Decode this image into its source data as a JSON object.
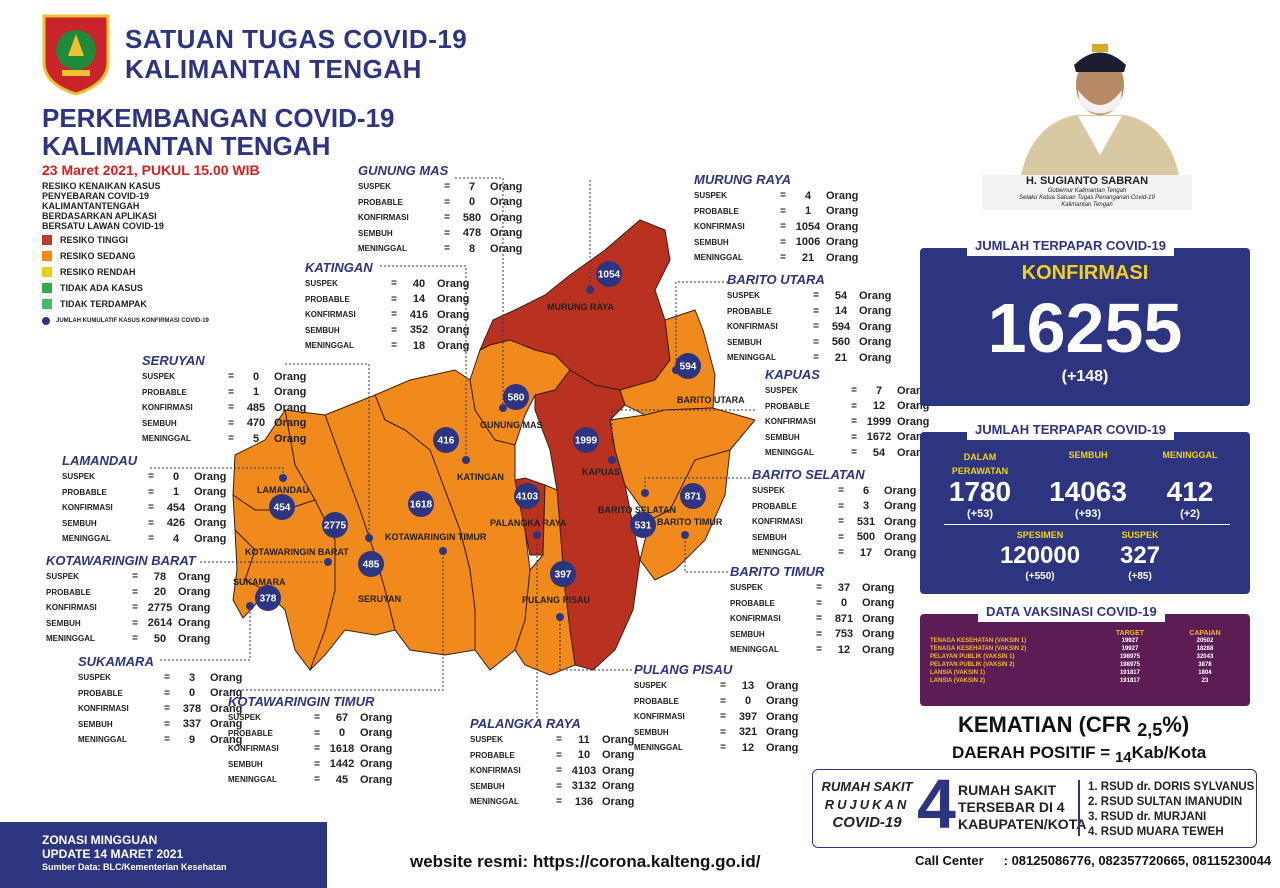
{
  "header": {
    "org_line1": "SATUAN TUGAS COVID-19",
    "org_line2": "KALIMANTAN TENGAH",
    "title_line1": "PERKEMBANGAN COVID-19",
    "title_line2": "KALIMANTAN TENGAH",
    "date": "23 Maret 2021, PUKUL 15.00 WIB"
  },
  "legend": {
    "heading_lines": [
      "RESIKO KENAIKAN KASUS",
      "PENYEBARAN COVID-19",
      "KALIMANTANTENGAH",
      "BERDASARKAN APLIKASI",
      "BERSATU LAWAN COVID-19"
    ],
    "items": [
      {
        "label": "RESIKO TINGGI",
        "color": "#c0392b"
      },
      {
        "label": "RESIKO SEDANG",
        "color": "#f28a1a"
      },
      {
        "label": "RESIKO RENDAH",
        "color": "#e8d21d"
      },
      {
        "label": "TIDAK ADA KASUS",
        "color": "#2fae4a"
      },
      {
        "label": "TIDAK TERDAMPAK",
        "color": "#3dbf6e"
      }
    ],
    "kumulatif": "JUMLAH KUMULATIF KASUS KONFIRMASI COVID-19"
  },
  "stat_labels": {
    "suspek": "SUSPEK",
    "probable": "PROBABLE",
    "konfirmasi": "KONFIRMASI",
    "sembuh": "SEMBUH",
    "meninggal": "MENINGGAL",
    "eq": "=",
    "unit": "Orang"
  },
  "regions": [
    {
      "key": "gunung_mas",
      "name": "GUNUNG MAS",
      "suspek": "7",
      "probable": "0",
      "konfirmasi": "580",
      "sembuh": "478",
      "meninggal": "8"
    },
    {
      "key": "murung_raya",
      "name": "MURUNG RAYA",
      "suspek": "4",
      "probable": "1",
      "konfirmasi": "1054",
      "sembuh": "1006",
      "meninggal": "21"
    },
    {
      "key": "katingan",
      "name": "KATINGAN",
      "suspek": "40",
      "probable": "14",
      "konfirmasi": "416",
      "sembuh": "352",
      "meninggal": "18"
    },
    {
      "key": "barito_utara",
      "name": "BARITO UTARA",
      "suspek": "54",
      "probable": "14",
      "konfirmasi": "594",
      "sembuh": "560",
      "meninggal": "21"
    },
    {
      "key": "seruyan",
      "name": "SERUYAN",
      "suspek": "0",
      "probable": "1",
      "konfirmasi": "485",
      "sembuh": "470",
      "meninggal": "5"
    },
    {
      "key": "kapuas",
      "name": "KAPUAS",
      "suspek": "7",
      "probable": "12",
      "konfirmasi": "1999",
      "sembuh": "1672",
      "meninggal": "54"
    },
    {
      "key": "lamandau",
      "name": "LAMANDAU",
      "suspek": "0",
      "probable": "1",
      "konfirmasi": "454",
      "sembuh": "426",
      "meninggal": "4"
    },
    {
      "key": "barito_selatan",
      "name": "BARITO SELATAN",
      "suspek": "6",
      "probable": "3",
      "konfirmasi": "531",
      "sembuh": "500",
      "meninggal": "17"
    },
    {
      "key": "kotawaringin_barat",
      "name": "KOTAWARINGIN BARAT",
      "suspek": "78",
      "probable": "20",
      "konfirmasi": "2775",
      "sembuh": "2614",
      "meninggal": "50"
    },
    {
      "key": "barito_timur",
      "name": "BARITO TIMUR",
      "suspek": "37",
      "probable": "0",
      "konfirmasi": "871",
      "sembuh": "753",
      "meninggal": "12"
    },
    {
      "key": "sukamara",
      "name": "SUKAMARA",
      "suspek": "3",
      "probable": "0",
      "konfirmasi": "378",
      "sembuh": "337",
      "meninggal": "9"
    },
    {
      "key": "pulang_pisau",
      "name": "PULANG PISAU",
      "suspek": "13",
      "probable": "0",
      "konfirmasi": "397",
      "sembuh": "321",
      "meninggal": "12"
    },
    {
      "key": "kotawaringin_timur",
      "name": "KOTAWARINGIN TIMUR",
      "suspek": "67",
      "probable": "0",
      "konfirmasi": "1618",
      "sembuh": "1442",
      "meninggal": "45"
    },
    {
      "key": "palangka_raya",
      "name": "PALANGKA RAYA",
      "suspek": "11",
      "probable": "10",
      "konfirmasi": "4103",
      "sembuh": "3132",
      "meninggal": "136"
    }
  ],
  "map": {
    "colors": {
      "tinggi": "#b8321f",
      "sedang": "#f08a1c",
      "border": "#3a1f10"
    },
    "labels": [
      "MURUNG RAYA",
      "BARITO UTARA",
      "GUNUNG MAS",
      "KAPUAS",
      "KATINGAN",
      "LAMANDAU",
      "BARITO SELATAN",
      "BARITO TIMUR",
      "PALANGKA RAYA",
      "KOTAWARINGIN BARAT",
      "KOTAWARINGIN TIMUR",
      "SUKAMARA",
      "SERUYAN",
      "PULANG PISAU"
    ],
    "markers": [
      "1054",
      "594",
      "580",
      "1999",
      "416",
      "454",
      "871",
      "531",
      "4103",
      "2775",
      "1618",
      "485",
      "397",
      "378"
    ]
  },
  "governor": {
    "name": "H. SUGIANTO SABRAN",
    "title1": "Gubernur Kalimantan Tengah",
    "title2": "Selaku Ketua Satuan Tugas Penanganan Covid-19",
    "title3": "Kalimantan Tengah"
  },
  "total": {
    "header": "JUMLAH TERPAPAR COVID-19",
    "label": "KONFIRMASI",
    "value": "16255",
    "delta": "(+148)"
  },
  "breakdown": {
    "header": "JUMLAH TERPAPAR COVID-19",
    "dalam_label1": "DALAM",
    "dalam_label2": "PERAWATAN",
    "dalam_value": "1780",
    "dalam_delta": "(+53)",
    "sembuh_label": "SEMBUH",
    "sembuh_value": "14063",
    "sembuh_delta": "(+93)",
    "meninggal_label": "MENINGGAL",
    "meninggal_value": "412",
    "meninggal_delta": "(+2)",
    "spesimen_label": "SPESIMEN",
    "spesimen_value": "120000",
    "spesimen_delta": "(+550)",
    "suspek_label": "SUSPEK",
    "suspek_value": "327",
    "suspek_delta": "(+85)"
  },
  "vaksin": {
    "header": "DATA VAKSINASI COVID-19",
    "col_target": "TARGET",
    "col_capaian": "CAPAIAN",
    "rows": [
      {
        "label": "TENAGA KESEHATAN (VAKSIN 1)",
        "target": "19927",
        "capaian": "20502"
      },
      {
        "label": "TENAGA KESEHATAN (VAKSIN 2)",
        "target": "19927",
        "capaian": "18288"
      },
      {
        "label": "PELAYAN PUBLIK (VAKSIN 1)",
        "target": "198975",
        "capaian": "32043"
      },
      {
        "label": "PELAYAN PUBLIK (VAKSIN 2)",
        "target": "198975",
        "capaian": "3878"
      },
      {
        "label": "LANSIA (VAKSIN 1)",
        "target": "191817",
        "capaian": "1804"
      },
      {
        "label": "LANSIA (VAKSIN 2)",
        "target": "191817",
        "capaian": "23"
      }
    ]
  },
  "cfr": {
    "prefix": "KEMATIAN (CFR",
    "value": "2,5",
    "suffix": "%)"
  },
  "daerah": {
    "prefix": "DAERAH POSITIF =",
    "value": "14",
    "suffix": "Kab/Kota"
  },
  "rumah_sakit": {
    "left1": "RUMAH SAKIT",
    "left2": "RUJUKAN",
    "left3": "COVID-19",
    "count": "4",
    "mid1": "RUMAH SAKIT",
    "mid2": "TERSEBAR DI 4",
    "mid3": "KABUPATEN/KOTA",
    "list": [
      "1. RSUD dr. DORIS SYLVANUS",
      "2. RSUD SULTAN IMANUDIN",
      "3. RSUD dr. MURJANI",
      "4. RSUD MUARA TEWEH"
    ]
  },
  "footer": {
    "zonasi": "ZONASI MINGGUAN",
    "update": "UPDATE 14 MARET 2021",
    "sumber": "Sumber Data: BLC/Kementerian Kesehatan",
    "website": "website resmi: https://corona.kalteng.go.id/",
    "cc_label": "Call Center",
    "cc_numbers": ": 08125086776, 082357720665, 08115230044"
  }
}
